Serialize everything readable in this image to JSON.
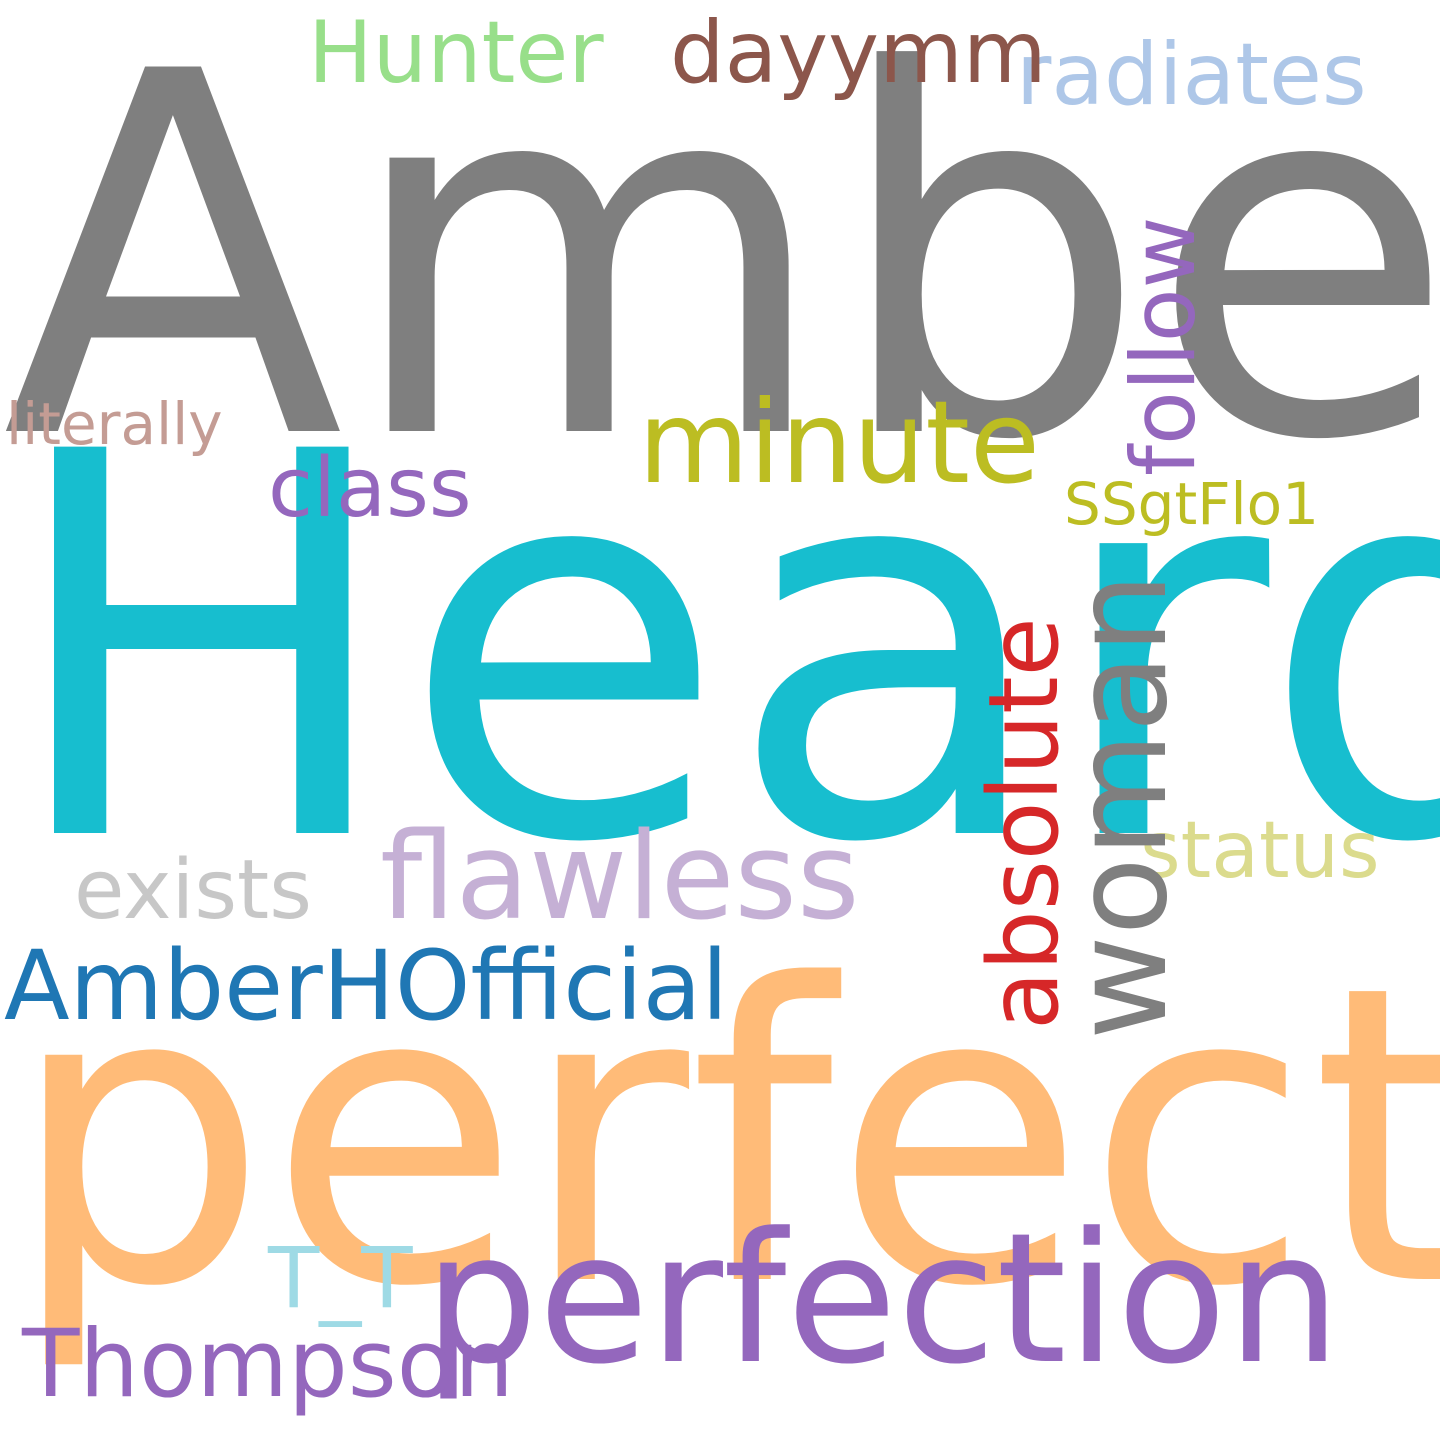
{
  "words": [
    {
      "key": "amber",
      "text": "Amber",
      "color": "#7f7f7f"
    },
    {
      "key": "heard",
      "text": "Heard",
      "color": "#17becf"
    },
    {
      "key": "perfect",
      "text": "perfect",
      "color": "#ffbb78"
    },
    {
      "key": "perfection",
      "text": "perfection",
      "color": "#9467bd"
    },
    {
      "key": "flawless",
      "text": "flawless",
      "color": "#c5b0d5"
    },
    {
      "key": "minute",
      "text": "minute",
      "color": "#bcbd22"
    },
    {
      "key": "amberh",
      "text": "AmberHOfficial",
      "color": "#1f77b4"
    },
    {
      "key": "thompson",
      "text": "Thompson",
      "color": "#9467bd"
    },
    {
      "key": "radiates",
      "text": "radiates",
      "color": "#aec7e8"
    },
    {
      "key": "hunter",
      "text": "Hunter",
      "color": "#98df8a"
    },
    {
      "key": "dayymm",
      "text": "dayymm",
      "color": "#8c564b"
    },
    {
      "key": "class",
      "text": "class",
      "color": "#9467bd"
    },
    {
      "key": "exists",
      "text": "exists",
      "color": "#c7c7c7"
    },
    {
      "key": "status",
      "text": "status",
      "color": "#dbdb8d"
    },
    {
      "key": "tt",
      "text": "T_T",
      "color": "#9edae5"
    },
    {
      "key": "literally",
      "text": "literally",
      "color": "#c49c94"
    },
    {
      "key": "ssgt",
      "text": "SSgtFlo1",
      "color": "#bcbd22"
    },
    {
      "key": "woman",
      "text": "woman",
      "color": "#7f7f7f"
    },
    {
      "key": "absolute",
      "text": "absolute",
      "color": "#d62728"
    },
    {
      "key": "follow",
      "text": "follow",
      "color": "#9467bd"
    }
  ]
}
